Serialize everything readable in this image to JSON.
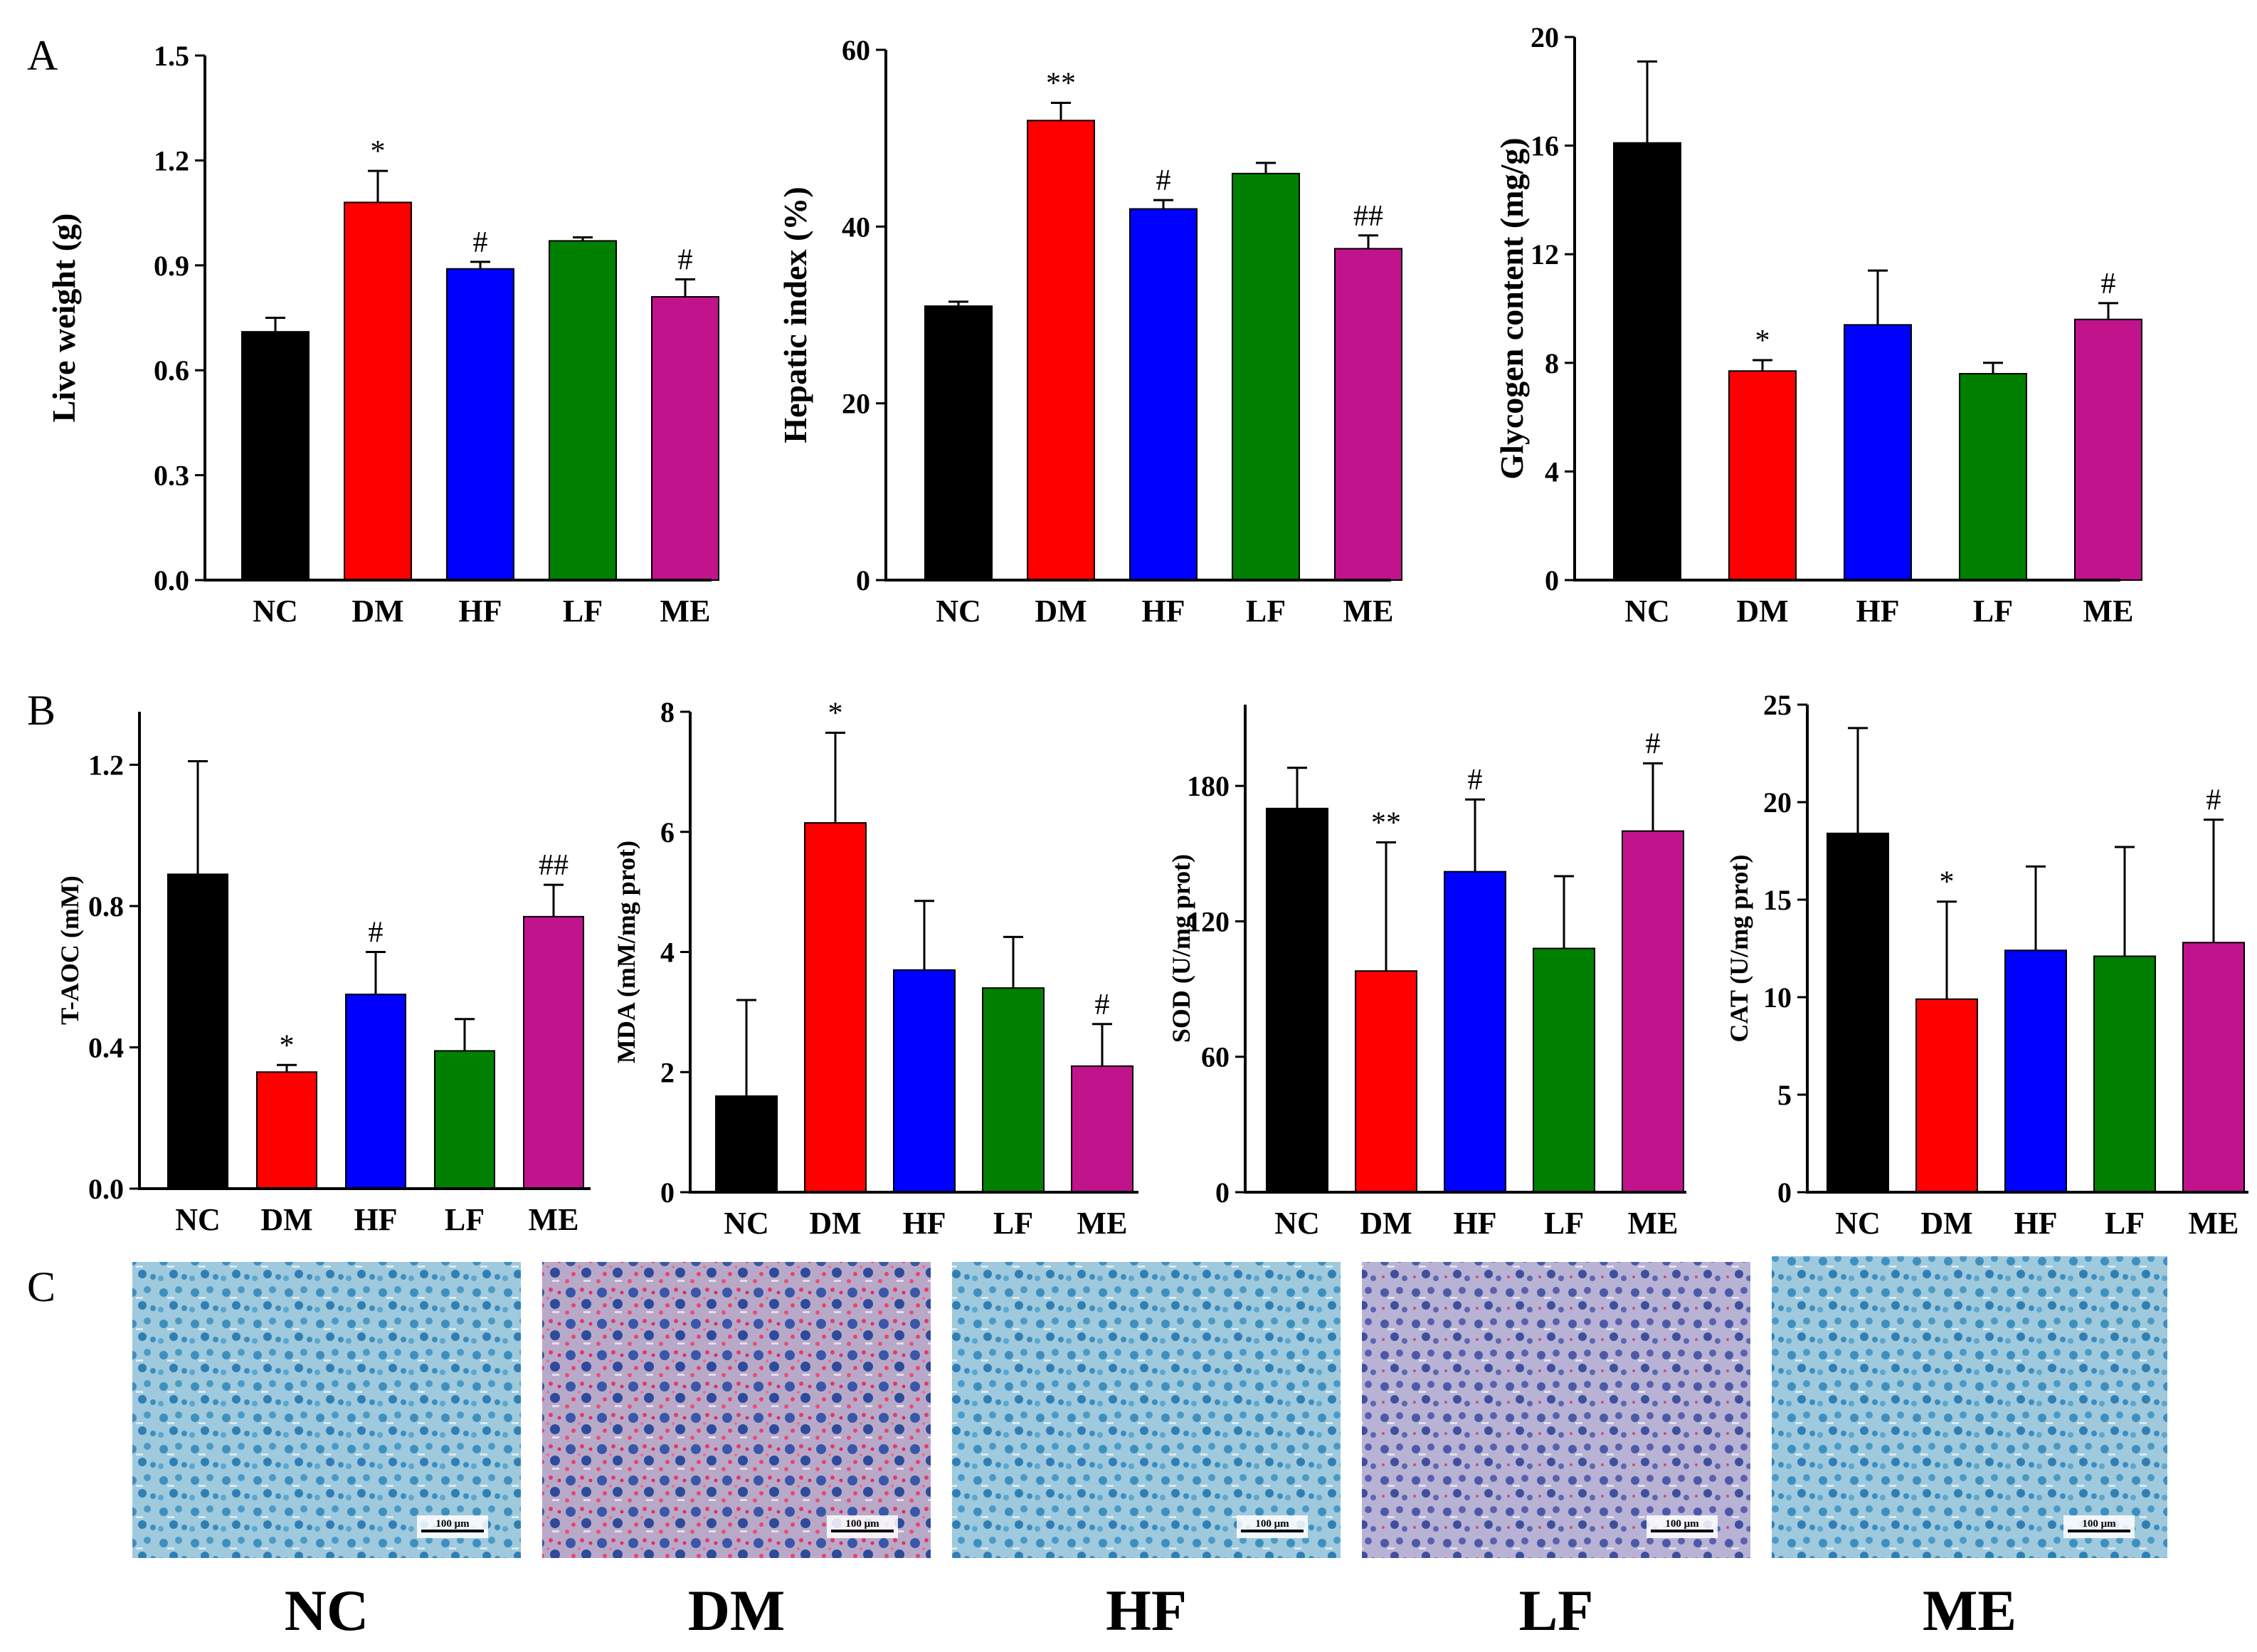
{
  "panel_labels": [
    "A",
    "B",
    "C"
  ],
  "colors": {
    "NC": "#000000",
    "DM": "#ff0000",
    "HF": "#0000ff",
    "LF": "#008000",
    "ME": "#c0138c"
  },
  "chart_data": [
    {
      "type": "bar",
      "panel": "A",
      "ylabel": "Live weight (g)",
      "categories": [
        "NC",
        "DM",
        "HF",
        "LF",
        "ME"
      ],
      "values": [
        0.71,
        1.08,
        0.89,
        0.97,
        0.81
      ],
      "errors": [
        0.04,
        0.09,
        0.02,
        0.01,
        0.05
      ],
      "significance": [
        "",
        "*",
        "#",
        "",
        "#"
      ],
      "ylim": [
        0,
        1.5
      ],
      "yticks": [
        "0.0",
        "0.3",
        "0.6",
        "0.9",
        "1.2",
        "1.5"
      ]
    },
    {
      "type": "bar",
      "panel": "A",
      "ylabel": "Hepatic index (%)",
      "categories": [
        "NC",
        "DM",
        "HF",
        "LF",
        "ME"
      ],
      "values": [
        31,
        52,
        42,
        46,
        37.5
      ],
      "errors": [
        0.5,
        2,
        1,
        1.2,
        1.5
      ],
      "significance": [
        "",
        "**",
        "#",
        "",
        "##"
      ],
      "ylim": [
        0,
        60
      ],
      "yticks": [
        "0",
        "20",
        "40",
        "60"
      ]
    },
    {
      "type": "bar",
      "panel": "A",
      "ylabel": "Glycogen content (mg/g)",
      "categories": [
        "NC",
        "DM",
        "HF",
        "LF",
        "ME"
      ],
      "values": [
        16.1,
        7.7,
        9.4,
        7.6,
        9.6
      ],
      "errors": [
        3,
        0.4,
        2,
        0.4,
        0.6
      ],
      "significance": [
        "",
        "*",
        "",
        "",
        "#"
      ],
      "ylim": [
        0,
        20
      ],
      "yticks": [
        "0",
        "4",
        "8",
        "12",
        "16",
        "20"
      ]
    },
    {
      "type": "bar",
      "panel": "B",
      "ylabel": "T-AOC (mM)",
      "categories": [
        "NC",
        "DM",
        "HF",
        "LF",
        "ME"
      ],
      "values": [
        0.89,
        0.33,
        0.55,
        0.39,
        0.77
      ],
      "errors": [
        0.32,
        0.02,
        0.12,
        0.09,
        0.09
      ],
      "significance": [
        "",
        "*",
        "#",
        "",
        "##"
      ],
      "ylim": [
        0,
        1.35
      ],
      "yticks": [
        "0.0",
        "0.4",
        "0.8",
        "1.2"
      ]
    },
    {
      "type": "bar",
      "panel": "B",
      "ylabel": "MDA (mM/mg prot)",
      "categories": [
        "NC",
        "DM",
        "HF",
        "LF",
        "ME"
      ],
      "values": [
        1.6,
        6.15,
        3.7,
        3.4,
        2.1
      ],
      "errors": [
        1.6,
        1.5,
        1.15,
        0.85,
        0.7
      ],
      "significance": [
        "",
        "*",
        "",
        "",
        "#"
      ],
      "ylim": [
        0,
        8
      ],
      "yticks": [
        "0",
        "2",
        "4",
        "6",
        "8"
      ]
    },
    {
      "type": "bar",
      "panel": "B",
      "ylabel": "SOD (U/mg prot)",
      "categories": [
        "NC",
        "DM",
        "HF",
        "LF",
        "ME"
      ],
      "values": [
        170,
        98,
        142,
        108,
        160
      ],
      "errors": [
        18,
        57,
        32,
        32,
        30
      ],
      "significance": [
        "",
        "**",
        "#",
        "",
        "#"
      ],
      "ylim": [
        0,
        216
      ],
      "yticks": [
        "0",
        "60",
        "120",
        "180"
      ]
    },
    {
      "type": "bar",
      "panel": "B",
      "ylabel": "CAT (U/mg prot)",
      "categories": [
        "NC",
        "DM",
        "HF",
        "LF",
        "ME"
      ],
      "values": [
        18.4,
        9.9,
        12.4,
        12.1,
        12.8
      ],
      "errors": [
        5.4,
        5,
        4.3,
        5.6,
        6.3
      ],
      "significance": [
        "",
        "*",
        "",
        "",
        "#"
      ],
      "ylim": [
        0,
        25
      ],
      "yticks": [
        "0",
        "5",
        "10",
        "15",
        "20",
        "25"
      ]
    }
  ],
  "micrographs": [
    {
      "group": "NC",
      "label": "NC",
      "scale_text": "100 μm",
      "stain": "blue"
    },
    {
      "group": "DM",
      "label": "DM",
      "scale_text": "100 μm",
      "stain": "red-heavy"
    },
    {
      "group": "HF",
      "label": "HF",
      "scale_text": "100 μm",
      "stain": "blue"
    },
    {
      "group": "LF",
      "label": "LF",
      "scale_text": "100 μm",
      "stain": "purple"
    },
    {
      "group": "ME",
      "label": "ME",
      "scale_text": "100 μm",
      "stain": "blue"
    }
  ]
}
